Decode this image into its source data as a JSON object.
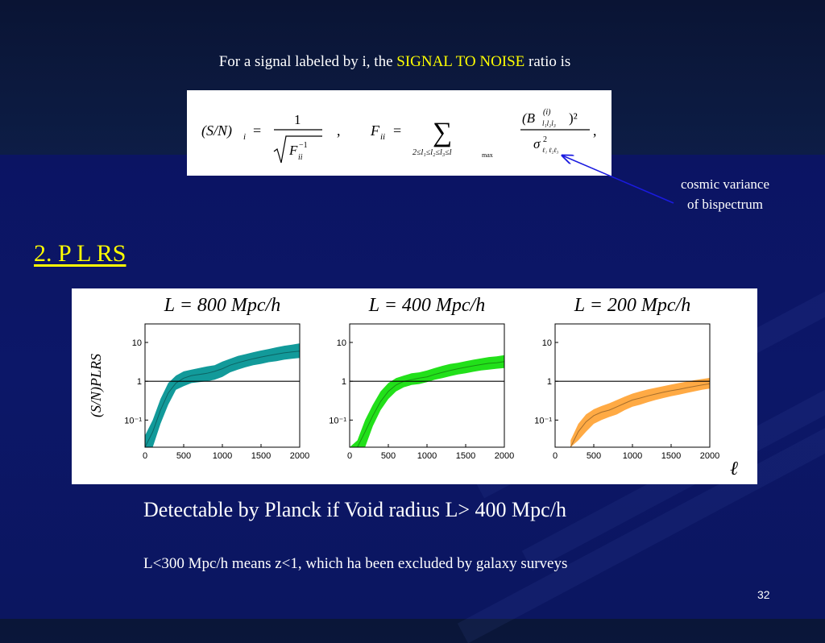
{
  "slide": {
    "intro": {
      "prefix": "For a signal labeled by i, the ",
      "highlight": "SIGNAL TO NOISE",
      "suffix": " ratio is"
    },
    "formula": {
      "sn_lhs": "(S/N)",
      "sn_sub": "i",
      "numerator": "1",
      "f_sym": "F",
      "f_sub": "ii",
      "f_sup": "−1",
      "comma": ",",
      "fii_lhs": "F",
      "fii_sub": "ii",
      "equals": "=",
      "sum_symbol": "∑",
      "sum_range": "2≤l₁≤l₂≤l₃≤l",
      "sum_range_max": "max",
      "b_num": "(B",
      "b_sup": "(i)",
      "b_sub": "l₁l₂l₃",
      "b_close": ")²",
      "sigma": "σ",
      "sigma_sup": "2",
      "sigma_sub": "ℓ₁ ℓ₂ℓ₃",
      "trailing_comma": ","
    },
    "annotation": {
      "line1": "cosmic variance",
      "line2": "of bispectrum"
    },
    "section_heading": "2. P L RS",
    "conclusion": "Detectable by Planck  if Void radius L> 400 Mpc/h",
    "note": "L<300 Mpc/h means z<1, which ha been excluded by galaxy surveys",
    "page_number": "32"
  },
  "colors": {
    "highlight": "#ffff00",
    "arrow": "#1a1ae0",
    "teal": "#129a9a",
    "green": "#22e01a",
    "orange": "#ffaa44"
  },
  "chart_data": [
    {
      "type": "area",
      "title": "L = 800 Mpc/h",
      "ylabel": "(S/N)PLRS",
      "xlabel": "",
      "yscale": "log",
      "xlim": [
        0,
        2000
      ],
      "ylim": [
        0.02,
        30
      ],
      "xticks": [
        "0",
        "500",
        "1000",
        "1500",
        "2000"
      ],
      "yticks": [
        "10",
        "1",
        "10⁻¹"
      ],
      "reference_line": 1,
      "color": "#129a9a",
      "x": [
        0,
        100,
        200,
        300,
        400,
        500,
        600,
        700,
        800,
        900,
        1000,
        1100,
        1200,
        1300,
        1400,
        1500,
        1600,
        1700,
        1800,
        1900,
        2000
      ],
      "y": [
        0.02,
        0.05,
        0.18,
        0.5,
        0.9,
        1.2,
        1.4,
        1.5,
        1.6,
        1.8,
        2.1,
        2.6,
        3.0,
        3.4,
        3.8,
        4.2,
        4.6,
        5.0,
        5.4,
        5.7,
        6.0
      ],
      "y_low": [
        0.02,
        0.02,
        0.08,
        0.25,
        0.6,
        0.75,
        0.9,
        0.95,
        1.0,
        1.1,
        1.3,
        1.7,
        2.0,
        2.3,
        2.6,
        2.8,
        3.1,
        3.3,
        3.6,
        3.8,
        4.0
      ],
      "y_high": [
        0.04,
        0.1,
        0.35,
        0.9,
        1.4,
        1.8,
        2.0,
        2.2,
        2.4,
        2.6,
        3.2,
        3.8,
        4.5,
        5.0,
        5.6,
        6.2,
        6.8,
        7.5,
        8.2,
        8.8,
        9.5
      ]
    },
    {
      "type": "area",
      "title": "L = 400 Mpc/h",
      "xlabel": "",
      "yscale": "log",
      "xlim": [
        0,
        2000
      ],
      "ylim": [
        0.02,
        30
      ],
      "xticks": [
        "0",
        "500",
        "1000",
        "1500",
        "2000"
      ],
      "yticks": [
        "10",
        "1",
        "10⁻¹"
      ],
      "reference_line": 1,
      "color": "#22e01a",
      "x": [
        0,
        100,
        200,
        300,
        400,
        500,
        600,
        700,
        800,
        900,
        1000,
        1100,
        1200,
        1300,
        1400,
        1500,
        1600,
        1700,
        1800,
        1900,
        2000
      ],
      "y": [
        0.02,
        0.02,
        0.05,
        0.13,
        0.3,
        0.55,
        0.8,
        1.0,
        1.1,
        1.2,
        1.3,
        1.5,
        1.7,
        1.9,
        2.1,
        2.3,
        2.5,
        2.7,
        2.9,
        3.0,
        3.2
      ],
      "y_low": [
        0.02,
        0.02,
        0.02,
        0.07,
        0.18,
        0.35,
        0.55,
        0.7,
        0.8,
        0.85,
        0.95,
        1.1,
        1.2,
        1.35,
        1.5,
        1.6,
        1.75,
        1.9,
        2.0,
        2.1,
        2.2
      ],
      "y_high": [
        0.02,
        0.03,
        0.1,
        0.25,
        0.55,
        0.9,
        1.2,
        1.4,
        1.6,
        1.7,
        1.9,
        2.2,
        2.5,
        2.8,
        3.0,
        3.3,
        3.6,
        3.9,
        4.2,
        4.4,
        4.7
      ]
    },
    {
      "type": "area",
      "title": "L = 200  Mpc/h",
      "xlabel": "ℓ",
      "yscale": "log",
      "xlim": [
        0,
        2000
      ],
      "ylim": [
        0.02,
        30
      ],
      "xticks": [
        "0",
        "500",
        "1000",
        "1500",
        "2000"
      ],
      "yticks": [
        "10",
        "1",
        "10⁻¹"
      ],
      "reference_line": 1,
      "color": "#ffaa44",
      "x": [
        200,
        300,
        400,
        500,
        600,
        700,
        800,
        900,
        1000,
        1100,
        1200,
        1300,
        1400,
        1500,
        1600,
        1700,
        1800,
        1900,
        2000
      ],
      "y": [
        0.02,
        0.05,
        0.09,
        0.13,
        0.16,
        0.18,
        0.22,
        0.27,
        0.33,
        0.37,
        0.42,
        0.47,
        0.52,
        0.57,
        0.62,
        0.68,
        0.74,
        0.8,
        0.86
      ],
      "y_low": [
        0.02,
        0.03,
        0.05,
        0.08,
        0.1,
        0.12,
        0.14,
        0.18,
        0.22,
        0.25,
        0.29,
        0.33,
        0.37,
        0.41,
        0.45,
        0.5,
        0.55,
        0.6,
        0.65
      ],
      "y_high": [
        0.03,
        0.08,
        0.14,
        0.19,
        0.23,
        0.27,
        0.33,
        0.4,
        0.48,
        0.55,
        0.62,
        0.68,
        0.75,
        0.82,
        0.9,
        0.98,
        1.06,
        1.14,
        1.22
      ]
    }
  ]
}
